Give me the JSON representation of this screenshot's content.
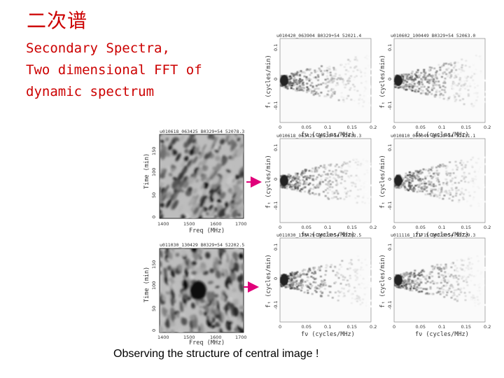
{
  "slide": {
    "title": "二次谱",
    "subtitle_lines": [
      "Secondary Spectra,",
      "Two dimensional FFT of",
      "dynamic spectrum"
    ],
    "caption": "Observing the structure of central image !"
  },
  "dynamic_spectra": [
    {
      "header": "u010618_063425    B0329+54    52078.3",
      "xlabel": "Freq (MHz)",
      "ylabel": "Time (min)",
      "xticks": [
        "1400",
        "1500",
        "1600",
        "1700"
      ],
      "yticks": [
        "150",
        "100",
        "50",
        "0"
      ]
    },
    {
      "header": "u011030_130429    B0329+54    52202.5",
      "xlabel": "Freq (MHz)",
      "ylabel": "Time (min)",
      "xticks": [
        "1400",
        "1500",
        "1600",
        "1700"
      ],
      "yticks": [
        "150",
        "100",
        "50",
        "0"
      ]
    }
  ],
  "secondary_spectra": [
    {
      "header": "u010420_063904    B0329+54    52021.4",
      "xlabel": "fν (cycles/MHz)",
      "ylabel": "fₜ (cycles/min)"
    },
    {
      "header": "u010602_100449    B0329+54    52063.0",
      "xlabel": "fν (cycles/MHz)",
      "ylabel": "fₜ (cycles/min)"
    },
    {
      "header": "u010618_063425    B0329+54    52078.3",
      "xlabel": "fν (cycles/MHz)",
      "ylabel": "fₜ (cycles/min)"
    },
    {
      "header": "u010810_000049    B0329+54    52131.1",
      "xlabel": "fν (cycles/MHz)",
      "ylabel": "fₜ (cycles/min)"
    },
    {
      "header": "u011030_130429    B0329+54    52202.5",
      "xlabel": "fν (cycles/MHz)",
      "ylabel": "fₜ (cycles/min)"
    },
    {
      "header": "u011116_121715    B0329+54    52229.3",
      "xlabel": "fν (cycles/MHz)",
      "ylabel": "fₜ (cycles/min)"
    }
  ],
  "secondary_xticks": [
    "0",
    "0.05",
    "0.1",
    "0.15",
    "0.2"
  ],
  "secondary_yticks": [
    "0.1",
    "0",
    "-0.1"
  ],
  "arrow_color": "#e0007a"
}
